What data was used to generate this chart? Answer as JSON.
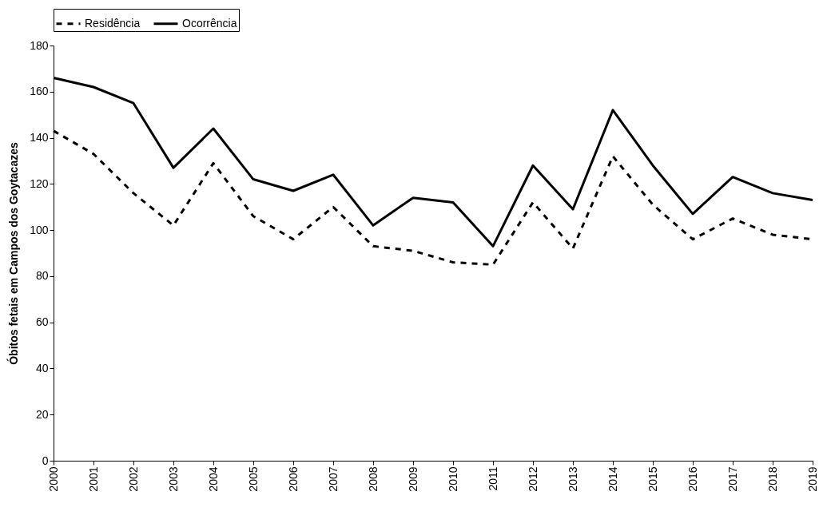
{
  "chart_data": {
    "type": "line",
    "ylabel": "Óbitos fetais em Campos dos Goytacazes",
    "categories": [
      "2000",
      "2001",
      "2002",
      "2003",
      "2004",
      "2005",
      "2006",
      "2007",
      "2008",
      "2009",
      "2010",
      "2011",
      "2012",
      "2013",
      "2014",
      "2015",
      "2016",
      "2017",
      "2018",
      "2019"
    ],
    "series": [
      {
        "name": "Residência",
        "color": "#000000",
        "line_style": "dashed",
        "values": [
          143,
          133,
          116,
          102,
          129,
          106,
          96,
          110,
          93,
          91,
          86,
          85,
          112,
          92,
          132,
          111,
          96,
          105,
          98,
          96
        ]
      },
      {
        "name": "Ocorrência",
        "color": "#000000",
        "line_style": "solid",
        "values": [
          166,
          162,
          155,
          127,
          144,
          122,
          117,
          124,
          102,
          114,
          112,
          93,
          128,
          109,
          152,
          128,
          107,
          123,
          116,
          113
        ]
      }
    ],
    "ylim": [
      0,
      180
    ],
    "yticks": [
      0,
      20,
      40,
      60,
      80,
      100,
      120,
      140,
      160,
      180
    ],
    "grid": false,
    "legend": "top"
  }
}
